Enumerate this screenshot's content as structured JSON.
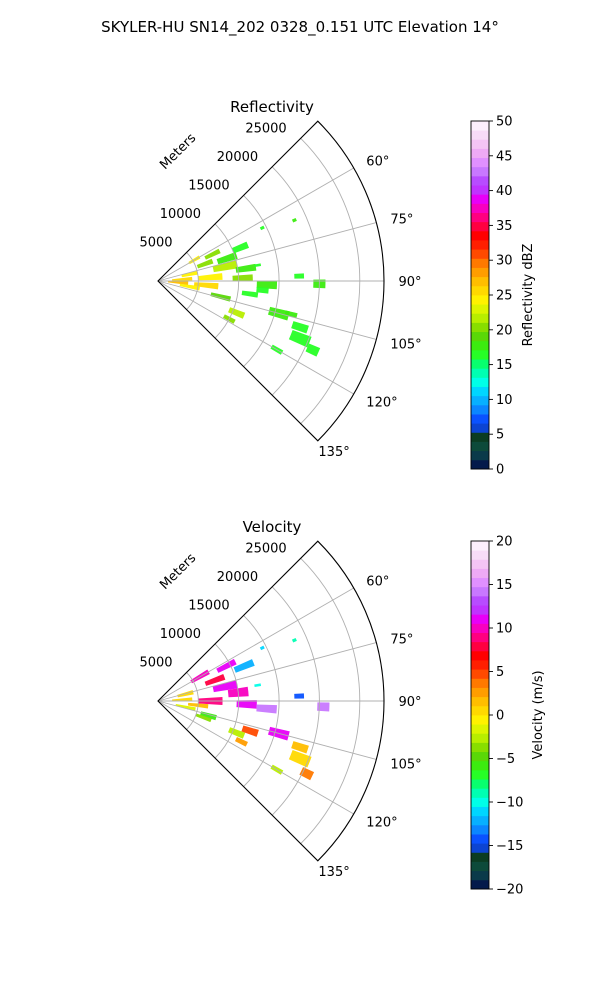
{
  "title": "SKYLER-HU  SN14_202  0328_0.151 UTC Elevation 14°",
  "chart_data": [
    {
      "type": "heatmap",
      "subtype": "polar-sector radar",
      "title": "Reflectivity",
      "radial_label": "Meters",
      "radial_ticks": [
        5000,
        10000,
        15000,
        20000,
        25000
      ],
      "radial_tick_labels": [
        "5000",
        "10000",
        "15000",
        "20000",
        "25000"
      ],
      "radial_max_m": 28000,
      "azimuth_range_deg": [
        45,
        135
      ],
      "azimuth_ticks_deg": [
        60,
        75,
        90,
        105,
        120,
        135
      ],
      "azimuth_tick_labels": [
        "60°",
        "75°",
        "90°",
        "105°",
        "120°",
        "135°"
      ],
      "grid": true,
      "colorbar": {
        "label": "Reflectivity dBZ",
        "min": 0,
        "max": 50,
        "ticks": [
          0,
          5,
          10,
          15,
          20,
          25,
          30,
          35,
          40,
          45,
          50
        ],
        "tick_labels": [
          "0",
          "5",
          "10",
          "15",
          "20",
          "25",
          "30",
          "35",
          "40",
          "45",
          "50"
        ],
        "colors": [
          "#041a4b",
          "#0a3a4a",
          "#0d4a3a",
          "#0b3c22",
          "#0c44d2",
          "#0a52ff",
          "#0b86ff",
          "#07b0ff",
          "#00d6ff",
          "#00ffe8",
          "#00ffb2",
          "#08ff6e",
          "#27ff26",
          "#3cec10",
          "#5ad807",
          "#88de00",
          "#b8ee00",
          "#ddf500",
          "#fff200",
          "#ffd900",
          "#ffbe00",
          "#ff9d00",
          "#ff7900",
          "#ff4a00",
          "#ff1f00",
          "#ff0000",
          "#ff0040",
          "#ff0080",
          "#f800c0",
          "#e800f8",
          "#c033ff",
          "#b84cff",
          "#c878ff",
          "#e090ff",
          "#eeaaf5",
          "#f4c4f4",
          "#f8dcf8",
          "#fdf0fd"
        ]
      },
      "cells": [
        {
          "az": 63,
          "r": 14500,
          "v": 16,
          "dr": 500,
          "da": 1.5
        },
        {
          "az": 66,
          "r": 18500,
          "v": 18,
          "dr": 500,
          "da": 1.2
        },
        {
          "az": 60,
          "r": 5200,
          "v": 24,
          "dr": 1500,
          "da": 4
        },
        {
          "az": 64,
          "r": 7500,
          "v": 20,
          "dr": 2000,
          "da": 4
        },
        {
          "az": 70,
          "r": 6200,
          "v": 21,
          "dr": 2000,
          "da": 5
        },
        {
          "az": 72,
          "r": 9000,
          "v": 18,
          "dr": 2500,
          "da": 5
        },
        {
          "az": 68,
          "r": 11000,
          "v": 17,
          "dr": 2000,
          "da": 4
        },
        {
          "az": 78,
          "r": 4000,
          "v": 24,
          "dr": 2000,
          "da": 6
        },
        {
          "az": 78,
          "r": 8500,
          "v": 22,
          "dr": 3000,
          "da": 6
        },
        {
          "az": 82,
          "r": 11000,
          "v": 18,
          "dr": 2500,
          "da": 4
        },
        {
          "az": 86,
          "r": 3000,
          "v": 26,
          "dr": 2500,
          "da": 6
        },
        {
          "az": 86,
          "r": 6500,
          "v": 24,
          "dr": 3000,
          "da": 6
        },
        {
          "az": 88,
          "r": 10500,
          "v": 20,
          "dr": 2500,
          "da": 4
        },
        {
          "az": 92,
          "r": 13500,
          "v": 18,
          "dr": 2500,
          "da": 4
        },
        {
          "az": 94,
          "r": 2500,
          "v": 27,
          "dr": 2500,
          "da": 7
        },
        {
          "az": 95,
          "r": 6000,
          "v": 25,
          "dr": 3000,
          "da": 6
        },
        {
          "az": 100,
          "r": 4000,
          "v": 24,
          "dr": 2500,
          "da": 6
        },
        {
          "az": 104,
          "r": 8000,
          "v": 19,
          "dr": 2500,
          "da": 4
        },
        {
          "az": 98,
          "r": 11500,
          "v": 16,
          "dr": 2000,
          "da": 3
        },
        {
          "az": 105,
          "r": 15500,
          "v": 18,
          "dr": 2500,
          "da": 4
        },
        {
          "az": 112,
          "r": 10500,
          "v": 22,
          "dr": 2000,
          "da": 4
        },
        {
          "az": 118,
          "r": 10000,
          "v": 20,
          "dr": 1500,
          "da": 3
        },
        {
          "az": 104,
          "r": 17000,
          "v": 18,
          "dr": 1500,
          "da": 2
        },
        {
          "az": 108,
          "r": 18500,
          "v": 17,
          "dr": 2000,
          "da": 3
        },
        {
          "az": 112,
          "r": 19000,
          "v": 17,
          "dr": 2500,
          "da": 4
        },
        {
          "az": 114,
          "r": 21000,
          "v": 16,
          "dr": 1500,
          "da": 3
        },
        {
          "az": 120,
          "r": 17000,
          "v": 16,
          "dr": 1500,
          "da": 2
        },
        {
          "az": 81,
          "r": 12500,
          "v": 16,
          "dr": 800,
          "da": 1.5
        },
        {
          "az": 88,
          "r": 17500,
          "v": 17,
          "dr": 1200,
          "da": 2
        },
        {
          "az": 91,
          "r": 20000,
          "v": 18,
          "dr": 1500,
          "da": 3
        },
        {
          "az": 95,
          "r": 13000,
          "v": 17,
          "dr": 1500,
          "da": 3
        }
      ]
    },
    {
      "type": "heatmap",
      "subtype": "polar-sector radar",
      "title": "Velocity",
      "radial_label": "Meters",
      "radial_ticks": [
        5000,
        10000,
        15000,
        20000,
        25000
      ],
      "radial_tick_labels": [
        "5000",
        "10000",
        "15000",
        "20000",
        "25000"
      ],
      "radial_max_m": 28000,
      "azimuth_range_deg": [
        45,
        135
      ],
      "azimuth_ticks_deg": [
        60,
        75,
        90,
        105,
        120,
        135
      ],
      "azimuth_tick_labels": [
        "60°",
        "75°",
        "90°",
        "105°",
        "120°",
        "135°"
      ],
      "grid": true,
      "colorbar": {
        "label": "Velocity (m/s)",
        "min": -20,
        "max": 20,
        "ticks": [
          -20,
          -15,
          -10,
          -5,
          0,
          5,
          10,
          15,
          20
        ],
        "tick_labels": [
          "−20",
          "−15",
          "−10",
          "−5",
          "0",
          "5",
          "10",
          "15",
          "20"
        ],
        "colors": [
          "#041a4b",
          "#0a3a4a",
          "#0d4a3a",
          "#0b3c22",
          "#0c44d2",
          "#0a52ff",
          "#0b86ff",
          "#07b0ff",
          "#00d6ff",
          "#00ffe8",
          "#00ffb2",
          "#08ff6e",
          "#27ff26",
          "#3cec10",
          "#5ad807",
          "#88de00",
          "#b8ee00",
          "#ddf500",
          "#fff200",
          "#ffd900",
          "#ffbe00",
          "#ff9d00",
          "#ff7900",
          "#ff4a00",
          "#ff1f00",
          "#ff0000",
          "#ff0040",
          "#ff0080",
          "#f800c0",
          "#e800f8",
          "#c033ff",
          "#b84cff",
          "#c878ff",
          "#e090ff",
          "#eeaaf5",
          "#f4c4f4",
          "#f8dcf8",
          "#fdf0fd"
        ]
      },
      "cells": [
        {
          "az": 63,
          "r": 14500,
          "v": -11,
          "dr": 500,
          "da": 1.5
        },
        {
          "az": 66,
          "r": 18500,
          "v": -9,
          "dr": 500,
          "da": 1.2
        },
        {
          "az": 60,
          "r": 6000,
          "v": 10,
          "dr": 2500,
          "da": 5
        },
        {
          "az": 63,
          "r": 9500,
          "v": 11,
          "dr": 2500,
          "da": 4
        },
        {
          "az": 68,
          "r": 11500,
          "v": -12,
          "dr": 2500,
          "da": 4
        },
        {
          "az": 70,
          "r": 7500,
          "v": 8,
          "dr": 2500,
          "da": 5
        },
        {
          "az": 76,
          "r": 3500,
          "v": 1,
          "dr": 2000,
          "da": 7
        },
        {
          "az": 78,
          "r": 8500,
          "v": 11,
          "dr": 3000,
          "da": 6
        },
        {
          "az": 84,
          "r": 10000,
          "v": 10,
          "dr": 2500,
          "da": 6
        },
        {
          "az": 87,
          "r": 3000,
          "v": 1,
          "dr": 2500,
          "da": 6
        },
        {
          "az": 90,
          "r": 6500,
          "v": 9,
          "dr": 3000,
          "da": 7
        },
        {
          "az": 92,
          "r": 11000,
          "v": 11,
          "dr": 2500,
          "da": 5
        },
        {
          "az": 94,
          "r": 13500,
          "v": 14,
          "dr": 2500,
          "da": 4
        },
        {
          "az": 96,
          "r": 5000,
          "v": 2,
          "dr": 2500,
          "da": 5
        },
        {
          "az": 102,
          "r": 3500,
          "v": -2,
          "dr": 2500,
          "da": 5
        },
        {
          "az": 106,
          "r": 6500,
          "v": -6,
          "dr": 2000,
          "da": 5
        },
        {
          "az": 110,
          "r": 6000,
          "v": -4,
          "dr": 2000,
          "da": 4
        },
        {
          "az": 105,
          "r": 15500,
          "v": 11,
          "dr": 2500,
          "da": 4
        },
        {
          "az": 112,
          "r": 10500,
          "v": -3,
          "dr": 2000,
          "da": 4
        },
        {
          "az": 116,
          "r": 11500,
          "v": 3,
          "dr": 1500,
          "da": 3
        },
        {
          "az": 108,
          "r": 12000,
          "v": 5,
          "dr": 2000,
          "da": 4
        },
        {
          "az": 108,
          "r": 18500,
          "v": 2,
          "dr": 2000,
          "da": 3
        },
        {
          "az": 112,
          "r": 19000,
          "v": 0,
          "dr": 2500,
          "da": 4
        },
        {
          "az": 116,
          "r": 20500,
          "v": 4,
          "dr": 1500,
          "da": 3
        },
        {
          "az": 120,
          "r": 17000,
          "v": -3,
          "dr": 1500,
          "da": 2
        },
        {
          "az": 88,
          "r": 17500,
          "v": -14,
          "dr": 1200,
          "da": 2
        },
        {
          "az": 92,
          "r": 20500,
          "v": 14,
          "dr": 1500,
          "da": 3
        },
        {
          "az": 81,
          "r": 12500,
          "v": -10,
          "dr": 800,
          "da": 1.5
        }
      ]
    }
  ]
}
